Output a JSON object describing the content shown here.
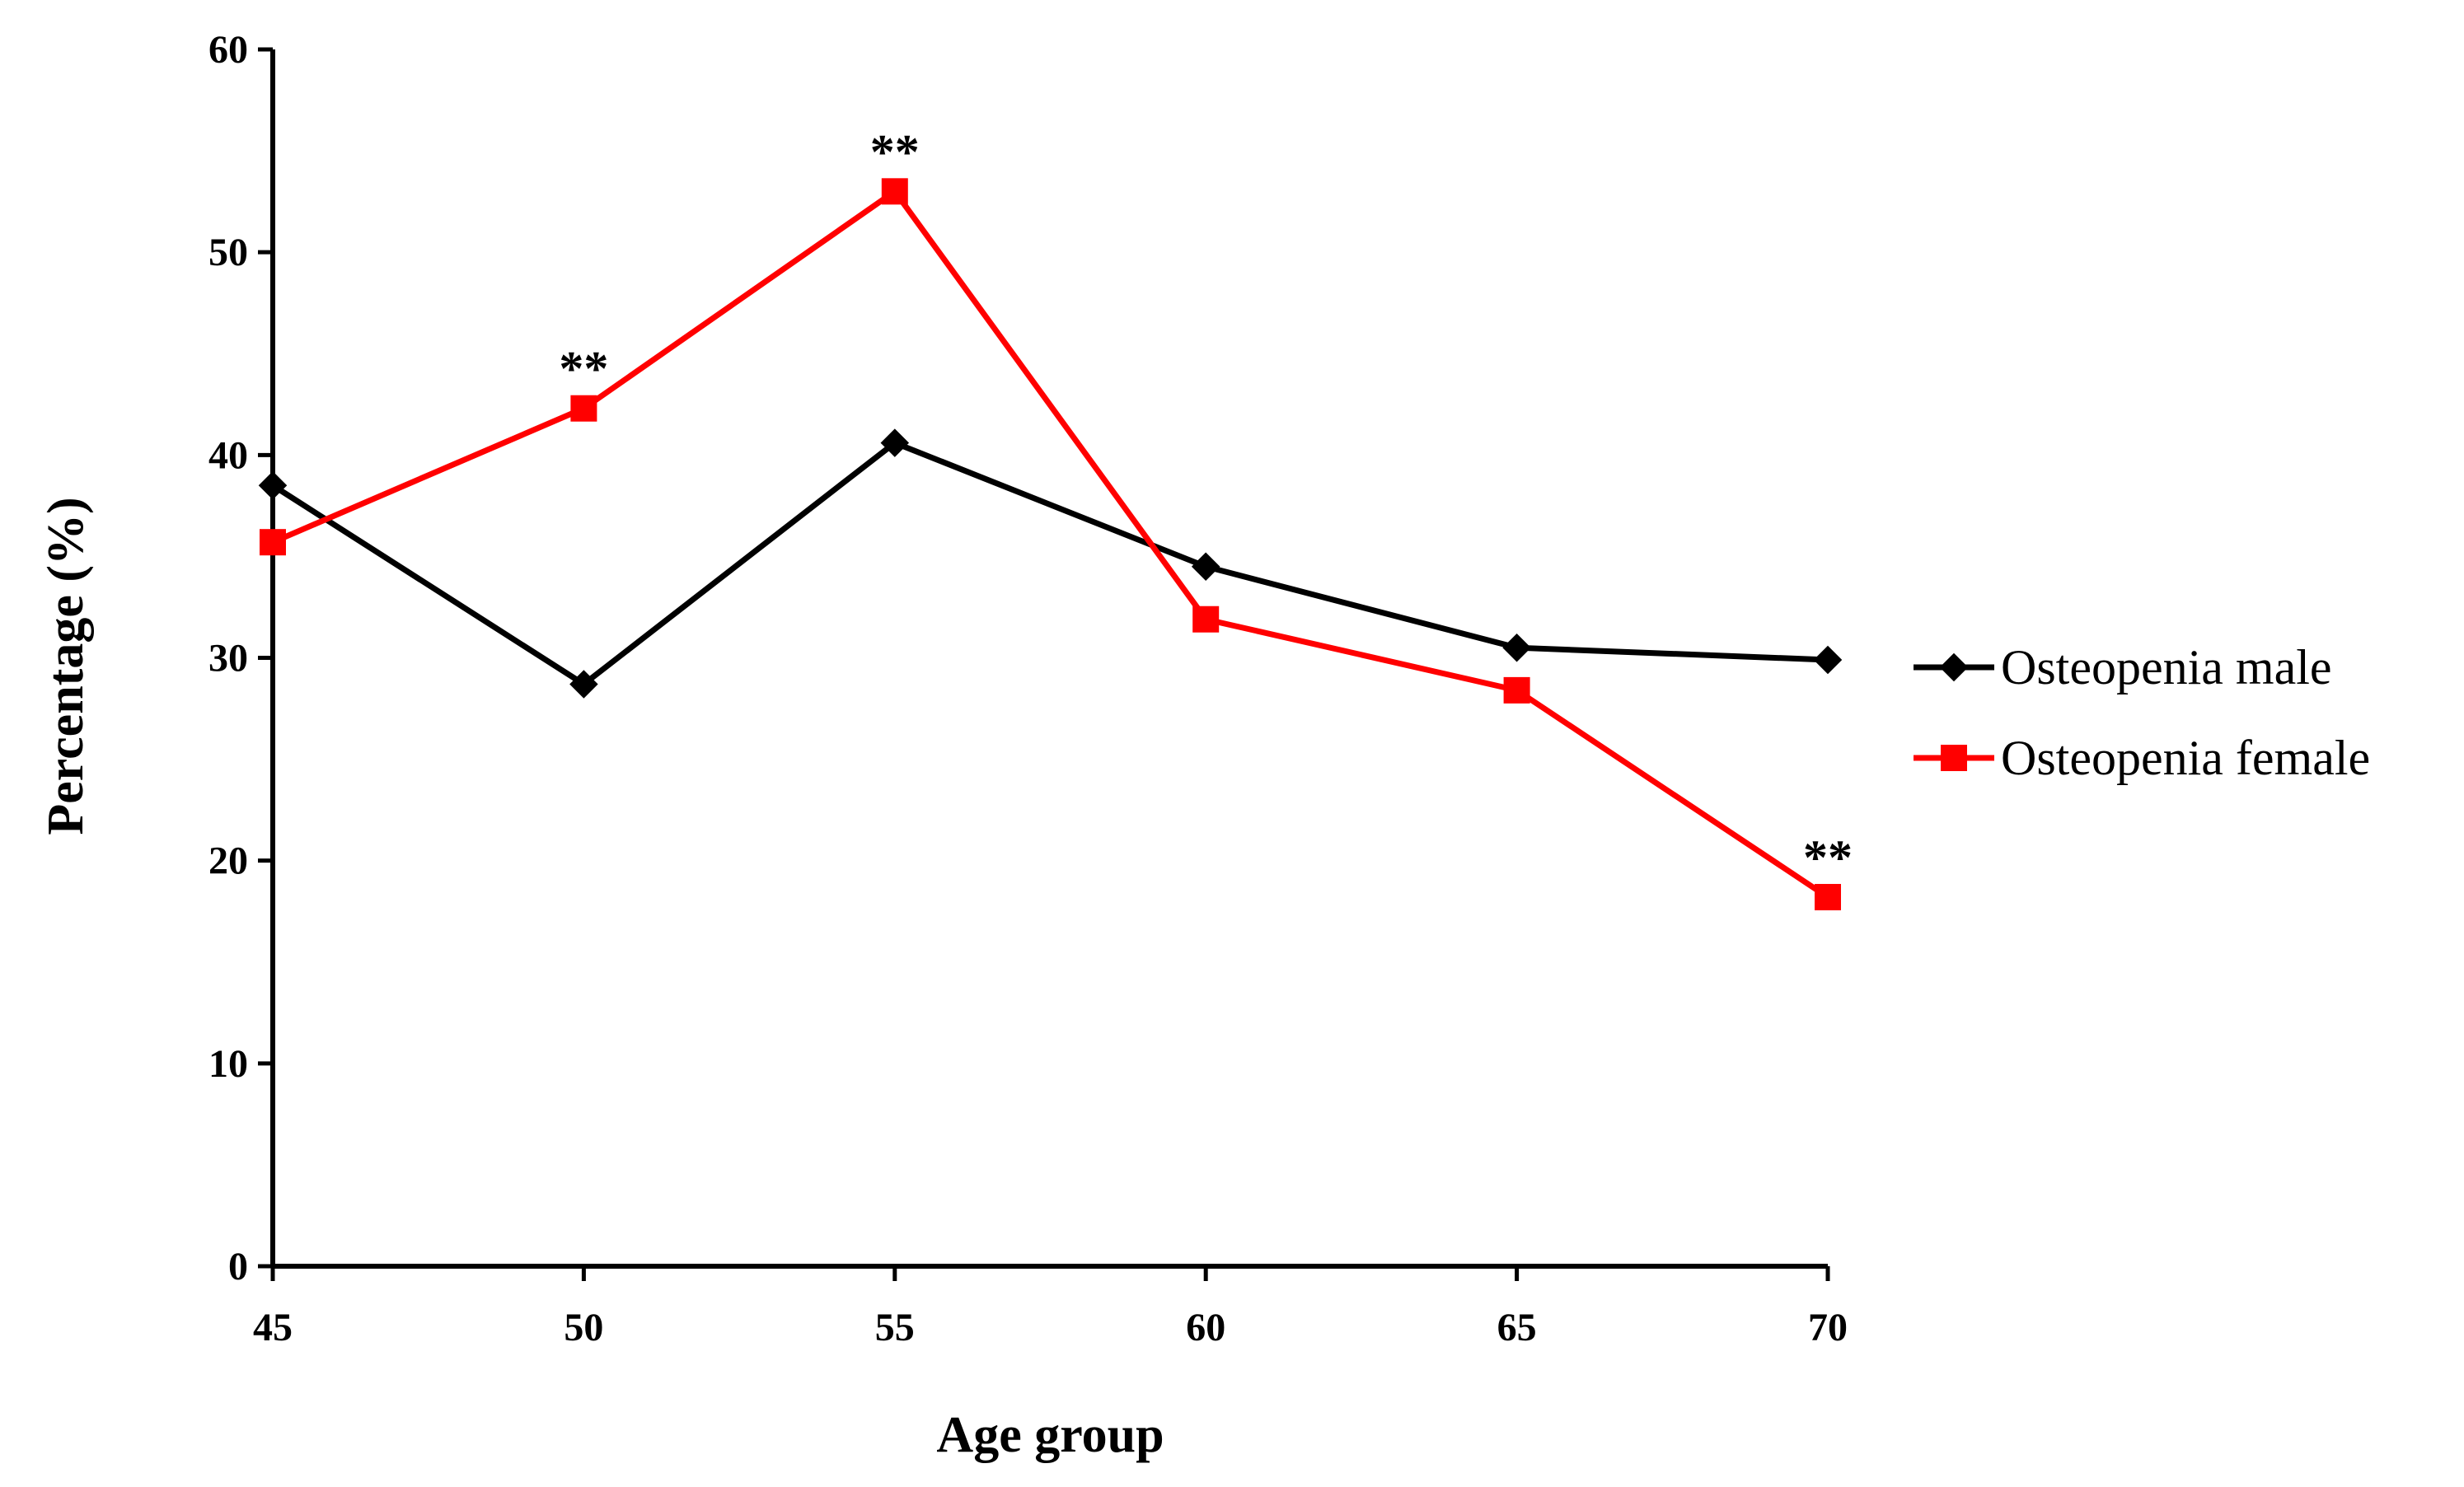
{
  "chart_data": {
    "type": "line",
    "title": "",
    "xlabel": "Age group",
    "ylabel": "Percentage (%)",
    "x": [
      45,
      50,
      55,
      60,
      65,
      70
    ],
    "xticks": [
      "45",
      "50",
      "55",
      "60",
      "65",
      "70"
    ],
    "ylim": [
      0,
      60
    ],
    "yticks": [
      "0",
      "10",
      "20",
      "30",
      "40",
      "50",
      "60"
    ],
    "grid": false,
    "legend_position": "right",
    "series": [
      {
        "name": "Osteopenia male",
        "color": "#000000",
        "marker": "diamond",
        "values": [
          38.5,
          28.7,
          40.6,
          34.5,
          30.5,
          29.9
        ]
      },
      {
        "name": "Osteopenia female",
        "color": "#ff0000",
        "marker": "square",
        "values": [
          35.7,
          42.3,
          53.0,
          31.9,
          28.4,
          18.2
        ]
      }
    ],
    "annotations": [
      {
        "text": "**",
        "x": 50,
        "series": "Osteopenia female"
      },
      {
        "text": "**",
        "x": 55,
        "series": "Osteopenia female"
      },
      {
        "text": "**",
        "x": 70,
        "series": "Osteopenia female"
      }
    ]
  }
}
